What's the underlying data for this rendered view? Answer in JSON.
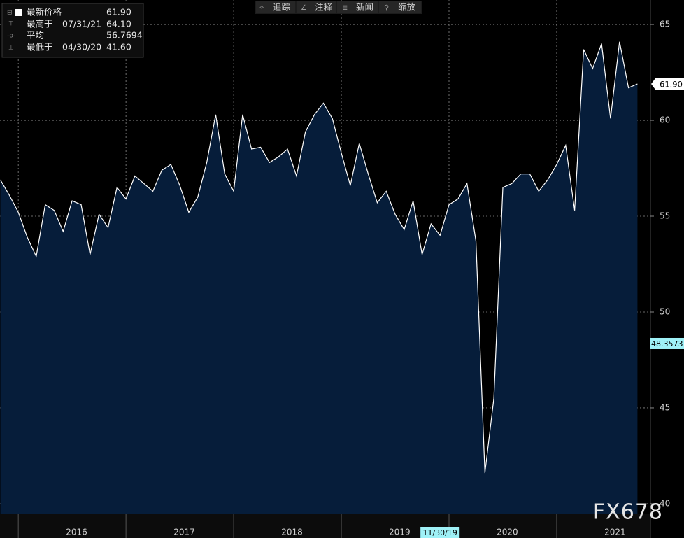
{
  "chart_data": {
    "type": "area",
    "x": [
      "10/31/15",
      "11/30/15",
      "12/31/15",
      "01/31/16",
      "02/29/16",
      "03/31/16",
      "04/30/16",
      "05/31/16",
      "06/30/16",
      "07/31/16",
      "08/31/16",
      "09/30/16",
      "10/31/16",
      "11/30/16",
      "12/31/16",
      "01/31/17",
      "02/28/17",
      "03/31/17",
      "04/30/17",
      "05/31/17",
      "06/30/17",
      "07/31/17",
      "08/31/17",
      "09/30/17",
      "10/31/17",
      "11/30/17",
      "12/31/17",
      "01/31/18",
      "02/28/18",
      "03/31/18",
      "04/30/18",
      "05/31/18",
      "06/30/18",
      "07/31/18",
      "08/31/18",
      "09/30/18",
      "10/31/18",
      "11/30/18",
      "12/31/18",
      "01/31/19",
      "02/28/19",
      "03/31/19",
      "04/30/19",
      "05/31/19",
      "06/30/19",
      "07/31/19",
      "08/31/19",
      "09/30/19",
      "10/31/19",
      "11/30/19",
      "12/31/19",
      "01/31/20",
      "02/29/20",
      "03/31/20",
      "04/30/20",
      "05/31/20",
      "06/30/20",
      "07/31/20",
      "08/31/20",
      "09/30/20",
      "10/31/20",
      "11/30/20",
      "12/31/20",
      "01/31/21",
      "02/28/21",
      "03/31/21",
      "04/30/21",
      "05/31/21",
      "06/30/21",
      "07/31/21",
      "08/31/21",
      "09/30/21"
    ],
    "series": [
      {
        "name": "最新价格",
        "color": "#ffffff",
        "fill": "#061d3a",
        "values": [
          56.9,
          56.1,
          55.2,
          53.9,
          52.9,
          55.6,
          55.3,
          54.2,
          55.8,
          55.6,
          53.0,
          55.1,
          54.4,
          56.5,
          55.9,
          57.1,
          56.7,
          56.3,
          57.4,
          57.7,
          56.6,
          55.2,
          56.0,
          57.8,
          60.3,
          57.2,
          56.3,
          60.3,
          58.5,
          58.6,
          57.8,
          58.1,
          58.5,
          57.1,
          59.4,
          60.3,
          60.9,
          60.1,
          58.3,
          56.6,
          58.8,
          57.2,
          55.7,
          56.3,
          55.1,
          54.3,
          55.8,
          53.0,
          54.6,
          54.0,
          55.6,
          55.9,
          56.7,
          53.7,
          41.6,
          45.5,
          56.5,
          56.7,
          57.2,
          57.2,
          56.3,
          56.9,
          57.7,
          58.7,
          55.3,
          63.7,
          62.7,
          64.0,
          60.1,
          64.1,
          61.7,
          61.9
        ]
      }
    ],
    "year_labels": [
      "2016",
      "2017",
      "2018",
      "2019",
      "2020",
      "2021"
    ],
    "ylim": [
      39.45,
      66.28
    ],
    "yticks": [
      40,
      45,
      50,
      55,
      60,
      65
    ],
    "grid": true,
    "last_label": "61.90",
    "cursor": {
      "y": 48.3573,
      "x_label": "11/30/19"
    },
    "stats": [
      {
        "label": "最新价格",
        "value": "61.90"
      },
      {
        "label": "最高于",
        "date": "07/31/21",
        "value": "64.10"
      },
      {
        "label": "平均",
        "value": "56.7694"
      },
      {
        "label": "最低于",
        "date": "04/30/20",
        "value": "41.60"
      }
    ],
    "toolbar": [
      "追踪",
      "注释",
      "新闻",
      "缩放"
    ],
    "watermark": "FX678"
  }
}
